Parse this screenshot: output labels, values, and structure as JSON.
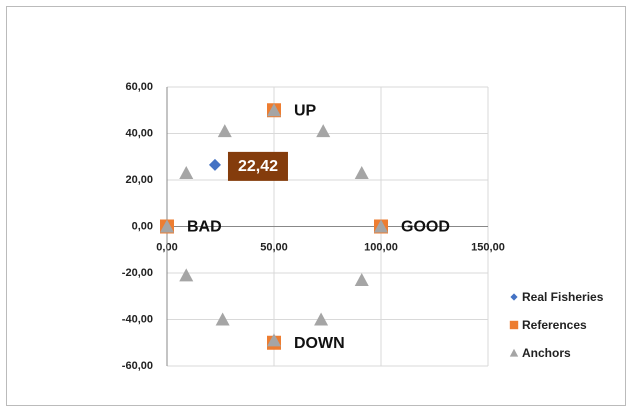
{
  "chart_data": {
    "type": "scatter",
    "xlim": [
      0,
      150
    ],
    "xticks": [
      {
        "value": 0,
        "label": "0,00"
      },
      {
        "value": 50,
        "label": "50,00"
      },
      {
        "value": 100,
        "label": "100,00"
      },
      {
        "value": 150,
        "label": "150,00"
      }
    ],
    "ylim": [
      -60,
      60
    ],
    "yticks": [
      {
        "value": -60,
        "label": "-60,00"
      },
      {
        "value": -40,
        "label": "-40,00"
      },
      {
        "value": -20,
        "label": "-20,00"
      },
      {
        "value": 0,
        "label": "0,00"
      },
      {
        "value": 20,
        "label": "20,00"
      },
      {
        "value": 40,
        "label": "40,00"
      },
      {
        "value": 60,
        "label": "60,00"
      }
    ],
    "grid": true,
    "legend": "right",
    "series": [
      {
        "name": "Real Fisheries",
        "color": "#4472c4",
        "marker": "diamond",
        "x": [
          22.42
        ],
        "values": [
          26.5
        ],
        "value_labels": [
          "22,42"
        ]
      },
      {
        "name": "References",
        "color": "#ed7d31",
        "marker": "square",
        "x": [
          0,
          100,
          50,
          50
        ],
        "values": [
          0,
          0,
          50,
          -50
        ],
        "point_labels": [
          "BAD",
          "GOOD",
          "UP",
          "DOWN"
        ]
      },
      {
        "name": "Anchors",
        "color": "#a5a5a5",
        "marker": "triangle",
        "x": [
          0,
          100,
          50,
          50,
          27,
          73,
          9,
          91,
          9,
          91,
          26,
          72
        ],
        "values": [
          0,
          0,
          50,
          -49,
          41,
          41,
          23,
          23,
          -21,
          -23,
          -40,
          -40
        ]
      }
    ]
  }
}
